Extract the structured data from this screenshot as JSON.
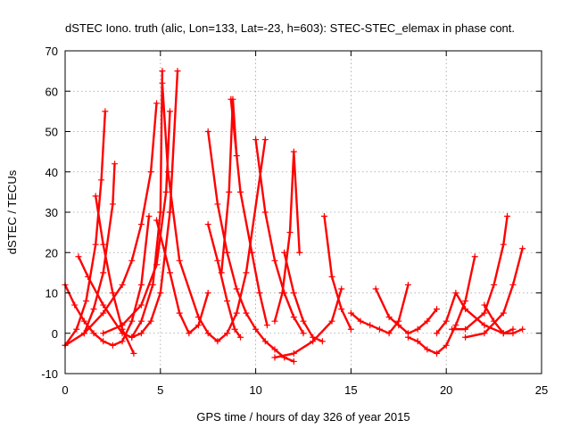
{
  "chart_data": {
    "type": "scatter",
    "title": "dSTEC Iono. truth (alic, Lon=133, Lat=-23, h=603): STEC-STEC_elemax in phase cont.",
    "xlabel": "GPS time / hours of day 326 of year 2015",
    "ylabel": "dSTEC  / TECUs",
    "xlim": [
      0,
      25
    ],
    "ylim": [
      -10,
      70
    ],
    "xticks": [
      0,
      5,
      10,
      15,
      20,
      25
    ],
    "yticks": [
      -10,
      0,
      10,
      20,
      30,
      40,
      50,
      60,
      70
    ],
    "grid": true,
    "marker": "+",
    "color": "#ff0000",
    "series": [
      {
        "x": [
          0.0,
          0.5,
          1.0,
          1.5,
          2.0,
          2.5,
          3.0,
          3.5,
          4.0,
          4.4
        ],
        "y": [
          12,
          7,
          3,
          0,
          -2,
          -3,
          -2,
          3,
          12,
          29
        ]
      },
      {
        "x": [
          0.0,
          1.0,
          2.0,
          3.0,
          3.5,
          4.0,
          4.5,
          4.8
        ],
        "y": [
          -3,
          0,
          5,
          12,
          18,
          27,
          40,
          57
        ]
      },
      {
        "x": [
          0.0,
          0.6,
          1.1,
          1.6,
          1.9,
          2.1
        ],
        "y": [
          -3,
          1,
          8,
          22,
          38,
          55
        ]
      },
      {
        "x": [
          0.7,
          1.2,
          2.0,
          3.0,
          3.5,
          4.0,
          4.5,
          5.0,
          5.5,
          5.9
        ],
        "y": [
          19,
          14,
          7,
          0,
          -1,
          0,
          3,
          10,
          30,
          65
        ]
      },
      {
        "x": [
          1.0,
          1.5,
          2.0,
          2.5,
          2.6
        ],
        "y": [
          0,
          6,
          15,
          32,
          42
        ]
      },
      {
        "x": [
          1.6,
          2.0,
          2.5,
          3.0,
          3.6
        ],
        "y": [
          34,
          22,
          10,
          1,
          -5
        ]
      },
      {
        "x": [
          2.0,
          3.0,
          4.0,
          4.8,
          5.3,
          5.5
        ],
        "y": [
          0,
          2,
          7,
          17,
          35,
          55
        ]
      },
      {
        "x": [
          3.5,
          4.0,
          4.6,
          5.0,
          5.1
        ],
        "y": [
          -1,
          3,
          12,
          30,
          65
        ]
      },
      {
        "x": [
          5.1,
          5.4,
          6.0,
          7.0,
          7.5,
          8.0,
          8.5,
          9.0,
          9.5,
          10.5
        ],
        "y": [
          62,
          40,
          18,
          4,
          0,
          -2,
          0,
          5,
          15,
          48
        ]
      },
      {
        "x": [
          4.8,
          5.5,
          6.0,
          6.5,
          7.0,
          7.5
        ],
        "y": [
          28,
          15,
          5,
          0,
          2,
          10
        ]
      },
      {
        "x": [
          7.5,
          8.0,
          8.5,
          9.0,
          9.5,
          10.0,
          10.5,
          11.0,
          11.5,
          12.0
        ],
        "y": [
          50,
          32,
          20,
          11,
          5,
          1,
          -2,
          -4,
          -6,
          -7
        ]
      },
      {
        "x": [
          7.5,
          8.0,
          8.5,
          8.9,
          9.2
        ],
        "y": [
          27,
          18,
          8,
          1,
          -1
        ]
      },
      {
        "x": [
          8.2,
          8.6,
          8.8,
          9.0
        ],
        "y": [
          15,
          35,
          58,
          44
        ]
      },
      {
        "x": [
          8.7,
          9.2,
          9.8,
          10.2,
          10.6
        ],
        "y": [
          58,
          35,
          20,
          10,
          2
        ]
      },
      {
        "x": [
          10.0,
          10.5,
          11.0,
          11.5,
          12.0,
          12.5
        ],
        "y": [
          48,
          30,
          18,
          10,
          4,
          0
        ]
      },
      {
        "x": [
          11.0,
          11.4,
          11.8,
          12.0,
          12.3
        ],
        "y": [
          3,
          10,
          25,
          45,
          20
        ]
      },
      {
        "x": [
          11.5,
          12.0,
          12.5,
          13.0,
          13.5
        ],
        "y": [
          20,
          10,
          3,
          -1,
          -2
        ]
      },
      {
        "x": [
          13.6,
          14.0,
          14.5,
          15.0
        ],
        "y": [
          29,
          14,
          6,
          1
        ]
      },
      {
        "x": [
          11.0,
          12.0,
          13.0,
          14.0,
          14.5
        ],
        "y": [
          -6,
          -5,
          -2,
          3,
          11
        ]
      },
      {
        "x": [
          15.0,
          15.5,
          16.0,
          16.5,
          17.0,
          17.5,
          18.0
        ],
        "y": [
          5,
          3,
          2,
          1,
          0,
          3,
          12
        ]
      },
      {
        "x": [
          16.3,
          17.0,
          17.5,
          18.0,
          18.5,
          19.0,
          19.5
        ],
        "y": [
          11,
          4,
          2,
          0,
          1,
          3,
          6
        ]
      },
      {
        "x": [
          18.0,
          18.5,
          19.0,
          19.5,
          20.0,
          20.5,
          21.0,
          21.5
        ],
        "y": [
          -1,
          -2,
          -4,
          -5,
          -3,
          2,
          8,
          19
        ]
      },
      {
        "x": [
          19.5,
          20.0,
          20.5,
          21.0,
          22.0,
          23.0,
          23.5
        ],
        "y": [
          0,
          3,
          10,
          6,
          2,
          0,
          1
        ]
      },
      {
        "x": [
          20.3,
          21.0,
          22.0,
          22.5,
          23.0,
          23.2
        ],
        "y": [
          1,
          1,
          5,
          12,
          22,
          29
        ]
      },
      {
        "x": [
          21.0,
          22.0,
          23.0,
          23.5,
          24.0
        ],
        "y": [
          -1,
          0,
          5,
          12,
          21
        ]
      },
      {
        "x": [
          22.0,
          22.5,
          23.0,
          23.5,
          24.0
        ],
        "y": [
          7,
          3,
          0,
          0,
          1
        ]
      }
    ]
  }
}
